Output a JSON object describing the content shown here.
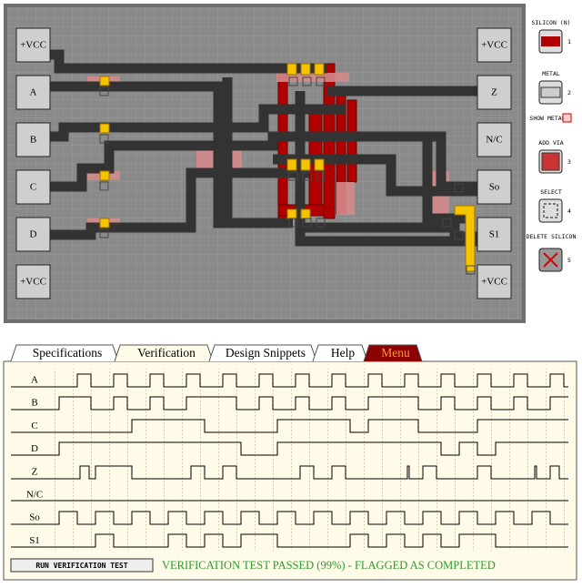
{
  "board": {
    "pins_left": [
      "+VCC",
      "A",
      "B",
      "C",
      "D",
      "+VCC"
    ],
    "pins_right": [
      "+VCC",
      "Z",
      "N/C",
      "So",
      "S1",
      "+VCC"
    ]
  },
  "toolbar": {
    "tools": [
      {
        "label": "SILICON (N)",
        "key": "1"
      },
      {
        "label": "METAL",
        "key": "2"
      },
      {
        "label": "ADD VIA",
        "key": "3"
      },
      {
        "label": "SELECT",
        "key": "4"
      },
      {
        "label": "DELETE SILICON",
        "key": "5"
      }
    ],
    "show_metal": "SHOW METAL"
  },
  "tabs": [
    "Specifications",
    "Verification",
    "Design Snippets",
    "Help",
    "Menu"
  ],
  "verification": {
    "signals": [
      "A",
      "B",
      "C",
      "D",
      "Z",
      "N/C",
      "So",
      "S1"
    ],
    "button": "RUN VERIFICATION TEST",
    "status": "VERIFICATION TEST PASSED (99%) - FLAGGED AS COMPLETED"
  }
}
